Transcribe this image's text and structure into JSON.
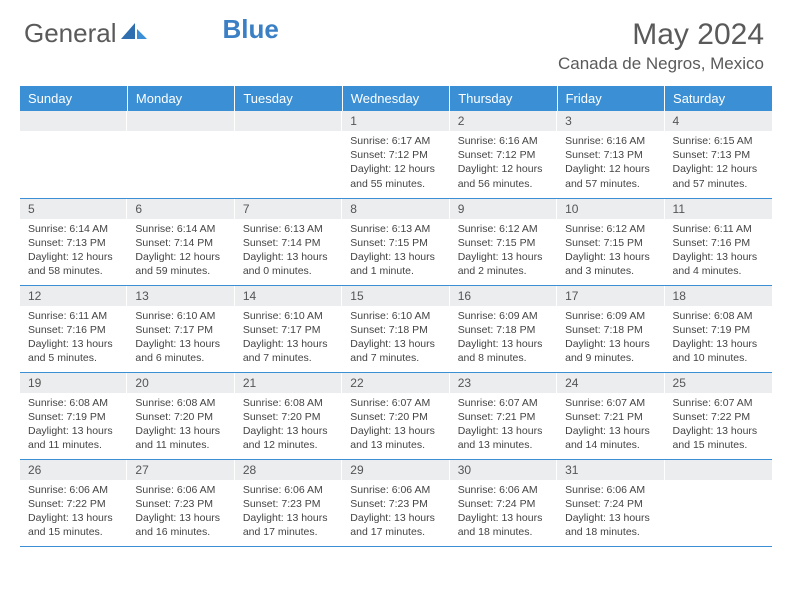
{
  "logo": {
    "text1": "General",
    "text2": "Blue"
  },
  "title": "May 2024",
  "location": "Canada de Negros, Mexico",
  "colors": {
    "header_bg": "#3b8fd4",
    "header_text": "#ffffff",
    "daynum_bg": "#ecedef",
    "text": "#5a5a5a",
    "border": "#3b8fd4"
  },
  "day_headers": [
    "Sunday",
    "Monday",
    "Tuesday",
    "Wednesday",
    "Thursday",
    "Friday",
    "Saturday"
  ],
  "days": [
    {
      "n": "",
      "sr": "",
      "ss": "",
      "dl1": "",
      "dl2": ""
    },
    {
      "n": "",
      "sr": "",
      "ss": "",
      "dl1": "",
      "dl2": ""
    },
    {
      "n": "",
      "sr": "",
      "ss": "",
      "dl1": "",
      "dl2": ""
    },
    {
      "n": "1",
      "sr": "Sunrise: 6:17 AM",
      "ss": "Sunset: 7:12 PM",
      "dl1": "Daylight: 12 hours",
      "dl2": "and 55 minutes."
    },
    {
      "n": "2",
      "sr": "Sunrise: 6:16 AM",
      "ss": "Sunset: 7:12 PM",
      "dl1": "Daylight: 12 hours",
      "dl2": "and 56 minutes."
    },
    {
      "n": "3",
      "sr": "Sunrise: 6:16 AM",
      "ss": "Sunset: 7:13 PM",
      "dl1": "Daylight: 12 hours",
      "dl2": "and 57 minutes."
    },
    {
      "n": "4",
      "sr": "Sunrise: 6:15 AM",
      "ss": "Sunset: 7:13 PM",
      "dl1": "Daylight: 12 hours",
      "dl2": "and 57 minutes."
    },
    {
      "n": "5",
      "sr": "Sunrise: 6:14 AM",
      "ss": "Sunset: 7:13 PM",
      "dl1": "Daylight: 12 hours",
      "dl2": "and 58 minutes."
    },
    {
      "n": "6",
      "sr": "Sunrise: 6:14 AM",
      "ss": "Sunset: 7:14 PM",
      "dl1": "Daylight: 12 hours",
      "dl2": "and 59 minutes."
    },
    {
      "n": "7",
      "sr": "Sunrise: 6:13 AM",
      "ss": "Sunset: 7:14 PM",
      "dl1": "Daylight: 13 hours",
      "dl2": "and 0 minutes."
    },
    {
      "n": "8",
      "sr": "Sunrise: 6:13 AM",
      "ss": "Sunset: 7:15 PM",
      "dl1": "Daylight: 13 hours",
      "dl2": "and 1 minute."
    },
    {
      "n": "9",
      "sr": "Sunrise: 6:12 AM",
      "ss": "Sunset: 7:15 PM",
      "dl1": "Daylight: 13 hours",
      "dl2": "and 2 minutes."
    },
    {
      "n": "10",
      "sr": "Sunrise: 6:12 AM",
      "ss": "Sunset: 7:15 PM",
      "dl1": "Daylight: 13 hours",
      "dl2": "and 3 minutes."
    },
    {
      "n": "11",
      "sr": "Sunrise: 6:11 AM",
      "ss": "Sunset: 7:16 PM",
      "dl1": "Daylight: 13 hours",
      "dl2": "and 4 minutes."
    },
    {
      "n": "12",
      "sr": "Sunrise: 6:11 AM",
      "ss": "Sunset: 7:16 PM",
      "dl1": "Daylight: 13 hours",
      "dl2": "and 5 minutes."
    },
    {
      "n": "13",
      "sr": "Sunrise: 6:10 AM",
      "ss": "Sunset: 7:17 PM",
      "dl1": "Daylight: 13 hours",
      "dl2": "and 6 minutes."
    },
    {
      "n": "14",
      "sr": "Sunrise: 6:10 AM",
      "ss": "Sunset: 7:17 PM",
      "dl1": "Daylight: 13 hours",
      "dl2": "and 7 minutes."
    },
    {
      "n": "15",
      "sr": "Sunrise: 6:10 AM",
      "ss": "Sunset: 7:18 PM",
      "dl1": "Daylight: 13 hours",
      "dl2": "and 7 minutes."
    },
    {
      "n": "16",
      "sr": "Sunrise: 6:09 AM",
      "ss": "Sunset: 7:18 PM",
      "dl1": "Daylight: 13 hours",
      "dl2": "and 8 minutes."
    },
    {
      "n": "17",
      "sr": "Sunrise: 6:09 AM",
      "ss": "Sunset: 7:18 PM",
      "dl1": "Daylight: 13 hours",
      "dl2": "and 9 minutes."
    },
    {
      "n": "18",
      "sr": "Sunrise: 6:08 AM",
      "ss": "Sunset: 7:19 PM",
      "dl1": "Daylight: 13 hours",
      "dl2": "and 10 minutes."
    },
    {
      "n": "19",
      "sr": "Sunrise: 6:08 AM",
      "ss": "Sunset: 7:19 PM",
      "dl1": "Daylight: 13 hours",
      "dl2": "and 11 minutes."
    },
    {
      "n": "20",
      "sr": "Sunrise: 6:08 AM",
      "ss": "Sunset: 7:20 PM",
      "dl1": "Daylight: 13 hours",
      "dl2": "and 11 minutes."
    },
    {
      "n": "21",
      "sr": "Sunrise: 6:08 AM",
      "ss": "Sunset: 7:20 PM",
      "dl1": "Daylight: 13 hours",
      "dl2": "and 12 minutes."
    },
    {
      "n": "22",
      "sr": "Sunrise: 6:07 AM",
      "ss": "Sunset: 7:20 PM",
      "dl1": "Daylight: 13 hours",
      "dl2": "and 13 minutes."
    },
    {
      "n": "23",
      "sr": "Sunrise: 6:07 AM",
      "ss": "Sunset: 7:21 PM",
      "dl1": "Daylight: 13 hours",
      "dl2": "and 13 minutes."
    },
    {
      "n": "24",
      "sr": "Sunrise: 6:07 AM",
      "ss": "Sunset: 7:21 PM",
      "dl1": "Daylight: 13 hours",
      "dl2": "and 14 minutes."
    },
    {
      "n": "25",
      "sr": "Sunrise: 6:07 AM",
      "ss": "Sunset: 7:22 PM",
      "dl1": "Daylight: 13 hours",
      "dl2": "and 15 minutes."
    },
    {
      "n": "26",
      "sr": "Sunrise: 6:06 AM",
      "ss": "Sunset: 7:22 PM",
      "dl1": "Daylight: 13 hours",
      "dl2": "and 15 minutes."
    },
    {
      "n": "27",
      "sr": "Sunrise: 6:06 AM",
      "ss": "Sunset: 7:23 PM",
      "dl1": "Daylight: 13 hours",
      "dl2": "and 16 minutes."
    },
    {
      "n": "28",
      "sr": "Sunrise: 6:06 AM",
      "ss": "Sunset: 7:23 PM",
      "dl1": "Daylight: 13 hours",
      "dl2": "and 17 minutes."
    },
    {
      "n": "29",
      "sr": "Sunrise: 6:06 AM",
      "ss": "Sunset: 7:23 PM",
      "dl1": "Daylight: 13 hours",
      "dl2": "and 17 minutes."
    },
    {
      "n": "30",
      "sr": "Sunrise: 6:06 AM",
      "ss": "Sunset: 7:24 PM",
      "dl1": "Daylight: 13 hours",
      "dl2": "and 18 minutes."
    },
    {
      "n": "31",
      "sr": "Sunrise: 6:06 AM",
      "ss": "Sunset: 7:24 PM",
      "dl1": "Daylight: 13 hours",
      "dl2": "and 18 minutes."
    },
    {
      "n": "",
      "sr": "",
      "ss": "",
      "dl1": "",
      "dl2": ""
    }
  ]
}
